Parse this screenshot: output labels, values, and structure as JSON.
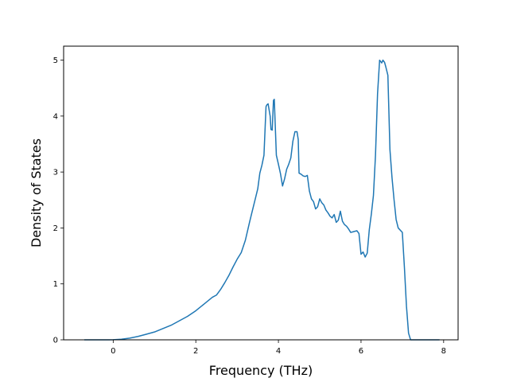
{
  "chart_data": {
    "type": "line",
    "title": "",
    "xlabel": "Frequency (THz)",
    "ylabel": "Density of States",
    "xlim": [
      -1.2,
      8.35
    ],
    "ylim": [
      0,
      5.25
    ],
    "xticks": [
      0,
      2,
      4,
      6,
      8
    ],
    "yticks": [
      0,
      1,
      2,
      3,
      4,
      5
    ],
    "grid": false,
    "legend": "none",
    "series": [
      {
        "color": "#1f77b4",
        "x": [
          -0.7,
          -0.5,
          -0.3,
          -0.1,
          0.0,
          0.2,
          0.4,
          0.6,
          0.8,
          1.0,
          1.2,
          1.4,
          1.6,
          1.8,
          2.0,
          2.2,
          2.4,
          2.5,
          2.6,
          2.7,
          2.8,
          2.9,
          3.0,
          3.1,
          3.2,
          3.3,
          3.35,
          3.4,
          3.45,
          3.5,
          3.55,
          3.6,
          3.65,
          3.7,
          3.72,
          3.75,
          3.8,
          3.82,
          3.85,
          3.88,
          3.9,
          3.95,
          4.0,
          4.05,
          4.1,
          4.15,
          4.2,
          4.25,
          4.3,
          4.35,
          4.4,
          4.45,
          4.48,
          4.5,
          4.55,
          4.6,
          4.65,
          4.7,
          4.75,
          4.8,
          4.85,
          4.9,
          4.95,
          5.0,
          5.05,
          5.1,
          5.15,
          5.2,
          5.25,
          5.3,
          5.35,
          5.4,
          5.45,
          5.5,
          5.55,
          5.6,
          5.65,
          5.7,
          5.75,
          5.8,
          5.85,
          5.9,
          5.95,
          6.0,
          6.05,
          6.1,
          6.15,
          6.2,
          6.25,
          6.3,
          6.35,
          6.4,
          6.45,
          6.5,
          6.53,
          6.57,
          6.6,
          6.65,
          6.7,
          6.75,
          6.8,
          6.85,
          6.9,
          7.0,
          7.05,
          7.1,
          7.15,
          7.2,
          7.4,
          7.6,
          7.9
        ],
        "y": [
          0.0,
          0.0,
          0.0,
          0.0,
          0.002,
          0.01,
          0.03,
          0.06,
          0.1,
          0.14,
          0.2,
          0.26,
          0.34,
          0.42,
          0.52,
          0.64,
          0.76,
          0.8,
          0.9,
          1.02,
          1.15,
          1.3,
          1.44,
          1.56,
          1.78,
          2.1,
          2.25,
          2.4,
          2.55,
          2.7,
          2.98,
          3.12,
          3.3,
          4.17,
          4.2,
          4.22,
          4.0,
          3.76,
          3.75,
          4.28,
          4.3,
          3.3,
          3.14,
          2.97,
          2.75,
          2.88,
          3.05,
          3.14,
          3.25,
          3.55,
          3.72,
          3.72,
          3.58,
          2.98,
          2.96,
          2.93,
          2.92,
          2.94,
          2.66,
          2.52,
          2.47,
          2.34,
          2.38,
          2.52,
          2.45,
          2.41,
          2.32,
          2.27,
          2.21,
          2.18,
          2.24,
          2.1,
          2.14,
          2.3,
          2.12,
          2.06,
          2.03,
          1.98,
          1.92,
          1.93,
          1.94,
          1.95,
          1.9,
          1.53,
          1.57,
          1.48,
          1.55,
          1.97,
          2.25,
          2.58,
          3.3,
          4.4,
          5.0,
          4.95,
          5.0,
          4.96,
          4.88,
          4.73,
          3.4,
          2.9,
          2.5,
          2.15,
          2.0,
          1.92,
          1.3,
          0.6,
          0.12,
          0.0,
          0.0,
          0.0,
          0.0
        ]
      }
    ]
  }
}
